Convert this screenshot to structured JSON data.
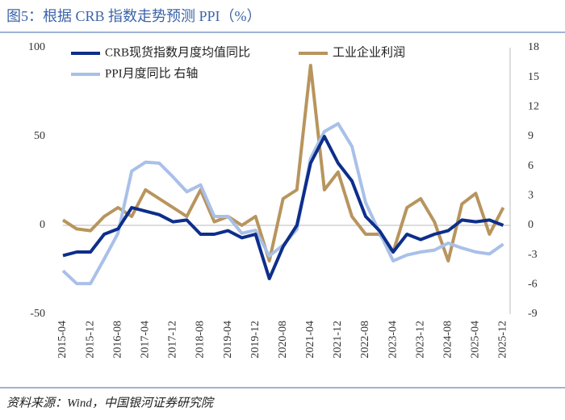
{
  "chart_data": {
    "type": "line",
    "title": "图5：根据 CRB 指数走势预测 PPI（%）",
    "source": "资料来源：Wind，中国银河证券研究院",
    "x": [
      "2015-04",
      "2015-08",
      "2015-12",
      "2016-04",
      "2016-08",
      "2016-12",
      "2017-04",
      "2017-08",
      "2017-12",
      "2018-04",
      "2018-08",
      "2018-12",
      "2019-04",
      "2019-08",
      "2019-12",
      "2020-04",
      "2020-08",
      "2020-12",
      "2021-04",
      "2021-08",
      "2021-12",
      "2022-04",
      "2022-08",
      "2022-12",
      "2023-04",
      "2023-08",
      "2023-12",
      "2024-04",
      "2024-08",
      "2024-12",
      "2025-04",
      "2025-08",
      "2025-12"
    ],
    "xlim": [
      "2015-04",
      "2026-02"
    ],
    "xticks": [
      "2015-04",
      "2015-12",
      "2016-08",
      "2017-04",
      "2017-12",
      "2018-08",
      "2019-04",
      "2019-12",
      "2020-08",
      "2021-04",
      "2021-12",
      "2022-08",
      "2023-04",
      "2023-12",
      "2024-08",
      "2025-04",
      "2025-12"
    ],
    "ylim": [
      -50,
      100
    ],
    "yticks": [
      -50,
      0,
      50,
      100
    ],
    "y2lim": [
      -9,
      18
    ],
    "y2ticks": [
      -9,
      -6,
      -3,
      0,
      3,
      6,
      9,
      12,
      15,
      18
    ],
    "series": [
      {
        "name": "CRB现货指数月度均值同比",
        "color": "#0d2e8a",
        "width": 4,
        "values": [
          -17,
          -15,
          -15,
          -5,
          -2,
          10,
          8,
          6,
          2,
          3,
          -5,
          -5,
          -3,
          -7,
          -5,
          -30,
          -12,
          0,
          35,
          50,
          35,
          25,
          5,
          -3,
          -15,
          -5,
          -8,
          -5,
          -3,
          3,
          2,
          3,
          0
        ]
      },
      {
        "name": "工业企业利润",
        "color": "#b8955e",
        "width": 4,
        "values": [
          3,
          -2,
          -3,
          5,
          10,
          5,
          20,
          15,
          10,
          5,
          20,
          2,
          5,
          0,
          5,
          -20,
          15,
          20,
          90,
          20,
          30,
          5,
          -5,
          -5,
          -15,
          10,
          15,
          2,
          -20,
          12,
          18,
          -5,
          10
        ]
      },
      {
        "name": "PPI月度同比 右轴",
        "color": "#a9c0e8",
        "width": 4,
        "axis": "y2",
        "values": [
          -4.6,
          -5.9,
          -5.9,
          -3.4,
          -0.8,
          5.5,
          6.4,
          6.3,
          4.9,
          3.4,
          4.1,
          0.9,
          0.9,
          -0.8,
          -0.5,
          -3.1,
          -2.0,
          -0.4,
          6.8,
          9.5,
          10.3,
          8.0,
          2.3,
          -0.7,
          -3.6,
          -3.0,
          -2.7,
          -2.5,
          -1.8,
          -2.3,
          -2.7,
          -2.9,
          -1.9
        ]
      }
    ]
  }
}
